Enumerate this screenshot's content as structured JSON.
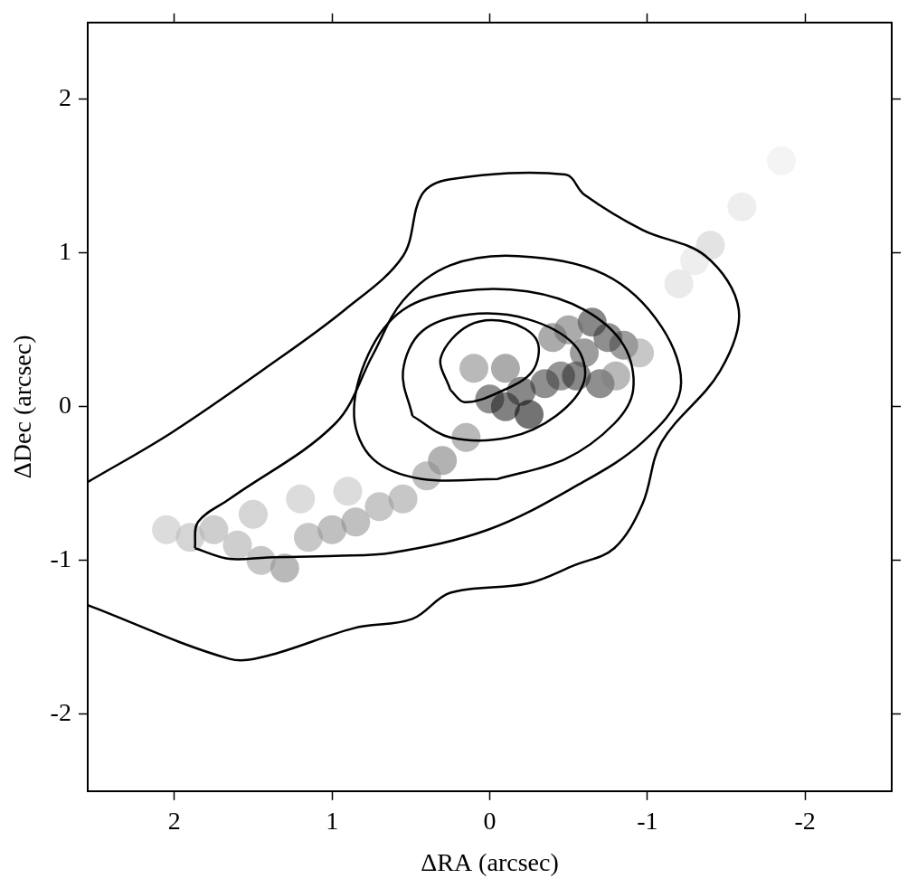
{
  "chart_data": {
    "type": "contour",
    "xlabel": "ΔRA (arcsec)",
    "ylabel": "ΔDec (arcsec)",
    "xlim": [
      2.55,
      -2.55
    ],
    "ylim": [
      -2.5,
      2.5
    ],
    "xticks": [
      2,
      1,
      0,
      -1,
      -2
    ],
    "yticks": [
      -2,
      -1,
      0,
      1,
      2
    ],
    "grid": false,
    "image": {
      "range": [
        0,
        1
      ],
      "points": [
        [
          0.0,
          0.05,
          0.8
        ],
        [
          -0.1,
          0.0,
          0.9
        ],
        [
          -0.2,
          0.1,
          0.85
        ],
        [
          -0.25,
          -0.05,
          1.0
        ],
        [
          -0.35,
          0.15,
          0.8
        ],
        [
          -0.45,
          0.2,
          0.75
        ],
        [
          -0.55,
          0.2,
          0.85
        ],
        [
          -0.6,
          0.35,
          0.7
        ],
        [
          -0.65,
          0.55,
          0.85
        ],
        [
          -0.75,
          0.45,
          0.8
        ],
        [
          -0.85,
          0.4,
          0.7
        ],
        [
          -0.7,
          0.15,
          0.8
        ],
        [
          -0.5,
          0.5,
          0.6
        ],
        [
          -0.4,
          0.45,
          0.6
        ],
        [
          -0.1,
          0.25,
          0.6
        ],
        [
          0.1,
          0.25,
          0.5
        ],
        [
          -0.8,
          0.2,
          0.5
        ],
        [
          -0.95,
          0.35,
          0.4
        ],
        [
          0.15,
          -0.2,
          0.5
        ],
        [
          0.3,
          -0.35,
          0.55
        ],
        [
          0.4,
          -0.45,
          0.45
        ],
        [
          0.55,
          -0.6,
          0.4
        ],
        [
          0.7,
          -0.65,
          0.4
        ],
        [
          0.85,
          -0.75,
          0.45
        ],
        [
          1.0,
          -0.8,
          0.45
        ],
        [
          1.15,
          -0.85,
          0.4
        ],
        [
          1.3,
          -1.05,
          0.5
        ],
        [
          1.45,
          -1.0,
          0.4
        ],
        [
          1.6,
          -0.9,
          0.35
        ],
        [
          1.75,
          -0.8,
          0.35
        ],
        [
          1.9,
          -0.85,
          0.3
        ],
        [
          2.05,
          -0.8,
          0.25
        ],
        [
          1.2,
          -0.6,
          0.25
        ],
        [
          1.5,
          -0.7,
          0.3
        ],
        [
          0.9,
          -0.55,
          0.25
        ],
        [
          -1.2,
          0.8,
          0.15
        ],
        [
          -1.4,
          1.05,
          0.2
        ],
        [
          -1.6,
          1.3,
          0.12
        ],
        [
          -1.85,
          1.6,
          0.08
        ],
        [
          -1.3,
          0.95,
          0.12
        ]
      ]
    },
    "color": "#000000",
    "contours": [
      {
        "x": [
          2.55,
          2.02,
          1.41,
          0.92,
          0.55,
          0.43,
          0.25,
          -0.48,
          -0.6,
          -0.97,
          -1.37,
          -1.58,
          -1.46,
          -1.09,
          -0.97,
          -0.79,
          -0.54,
          -0.24,
          0.25,
          0.49,
          0.86,
          1.41,
          1.65,
          2.55
        ],
        "y": [
          -0.49,
          -0.17,
          0.26,
          0.63,
          0.98,
          1.38,
          1.48,
          1.51,
          1.38,
          1.15,
          0.98,
          0.63,
          0.23,
          -0.23,
          -0.63,
          -0.92,
          -1.03,
          -1.15,
          -1.21,
          -1.38,
          -1.44,
          -1.62,
          -1.64,
          -1.29
        ]
      },
      {
        "x": [
          1.87,
          1.85,
          1.65,
          0.98,
          0.74,
          0.55,
          0.25,
          -0.18,
          -0.73,
          -1.09,
          -1.21,
          -0.97,
          -0.54,
          0.01,
          0.62,
          0.98,
          1.41,
          1.65,
          1.87
        ],
        "y": [
          -0.92,
          -0.75,
          -0.6,
          -0.11,
          0.34,
          0.69,
          0.92,
          0.98,
          0.86,
          0.52,
          0.11,
          -0.23,
          -0.52,
          -0.8,
          -0.95,
          -0.97,
          -0.98,
          -0.99,
          -0.92
        ]
      },
      {
        "x": [
          -0.05,
          0.43,
          0.74,
          0.86,
          0.77,
          0.55,
          0.19,
          -0.24,
          -0.6,
          -0.85,
          -0.91,
          -0.79,
          -0.48,
          -0.05
        ],
        "y": [
          -0.47,
          -0.47,
          -0.34,
          -0.06,
          0.34,
          0.63,
          0.75,
          0.75,
          0.63,
          0.4,
          0.11,
          -0.11,
          -0.34,
          -0.47
        ]
      },
      {
        "x": [
          0.49,
          0.55,
          0.43,
          0.13,
          -0.24,
          -0.54,
          -0.6,
          -0.42,
          -0.12,
          0.25,
          0.49
        ],
        "y": [
          -0.06,
          0.23,
          0.49,
          0.6,
          0.57,
          0.4,
          0.17,
          -0.06,
          -0.2,
          -0.2,
          -0.06
        ]
      },
      {
        "x": [
          0.25,
          0.31,
          0.13,
          -0.12,
          -0.3,
          -0.27,
          -0.05,
          0.16,
          0.25
        ],
        "y": [
          0.11,
          0.32,
          0.53,
          0.55,
          0.43,
          0.23,
          0.09,
          0.03,
          0.11
        ]
      }
    ]
  }
}
